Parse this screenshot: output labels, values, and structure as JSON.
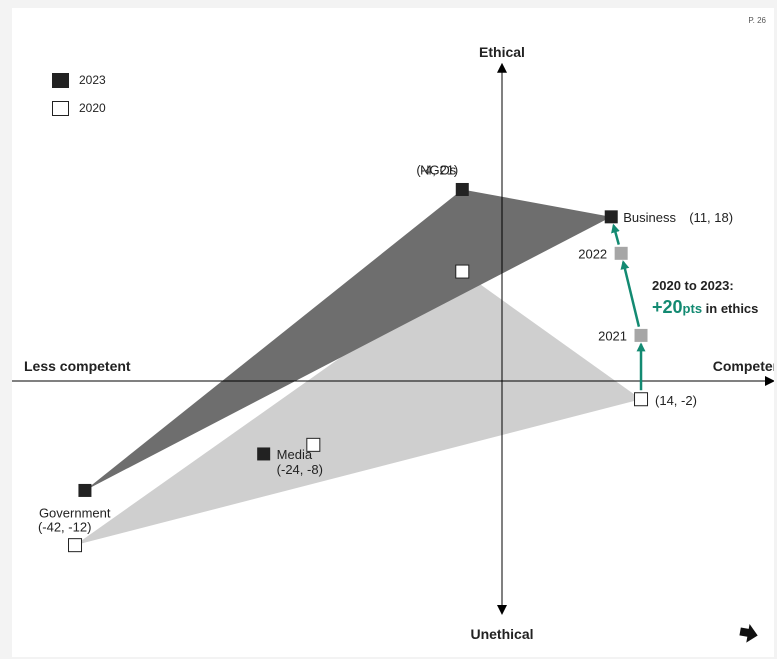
{
  "page": {
    "page_number": "P. 26"
  },
  "legend": [
    {
      "label": "2023",
      "color": "#222222",
      "filled": true
    },
    {
      "label": "2020",
      "color": "#ffffff",
      "filled": false
    }
  ],
  "callout": {
    "line1": "2020 to 2023:",
    "big": "+20",
    "unit": "pts",
    "rest": " in ethics"
  },
  "nav": {
    "icon": "down-right-arrow-icon"
  },
  "colors": {
    "fill2023": "#6e6e6e",
    "fill2020": "#cfcfcf",
    "marker2023": "#222222",
    "markerMid": "#a6a6a6",
    "accent": "#138a72",
    "axis": "#000000"
  },
  "chart_data": {
    "type": "scatter",
    "xlabel_left": "Less competent",
    "xlabel_right": "Competent",
    "ylabel_top": "Ethical",
    "ylabel_bottom": "Unethical",
    "xlim": [
      -50,
      30
    ],
    "ylim": [
      -25,
      35
    ],
    "series": [
      {
        "name": "2023",
        "points": [
          {
            "label": "NGOs",
            "coord": "(-4, 21)",
            "x": -4,
            "y": 21
          },
          {
            "label": "Business",
            "coord": "(11, 18)",
            "x": 11,
            "y": 18
          },
          {
            "label": "Government",
            "coord": "(-42, -12)",
            "x": -42,
            "y": -12
          },
          {
            "label": "Media",
            "coord": "(-24, -8)",
            "x": -24,
            "y": -8
          }
        ]
      },
      {
        "name": "2020",
        "points": [
          {
            "label": "NGOs",
            "x": -4,
            "y": 12
          },
          {
            "label": "Business",
            "coord": "(14, -2)",
            "x": 14,
            "y": -2
          },
          {
            "label": "Government",
            "x": -43,
            "y": -18
          },
          {
            "label": "Media",
            "x": -19,
            "y": -7
          }
        ]
      }
    ],
    "business_path": [
      {
        "label": "2021",
        "x": 14,
        "y": 5
      },
      {
        "label": "2022",
        "x": 12,
        "y": 14
      }
    ]
  }
}
